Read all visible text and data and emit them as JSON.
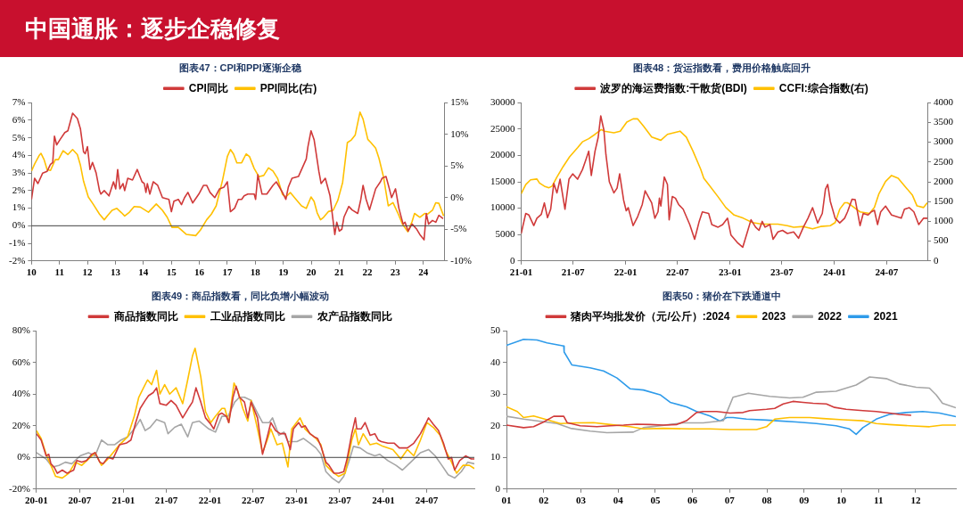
{
  "chart_data": [
    {
      "type": "other",
      "title": "中国通胀：逐步企稳修复"
    },
    {
      "type": "line",
      "title": "图表47：CPI和PPI逐渐企稳",
      "legend": "top",
      "xlim": [
        2010,
        2024.75
      ],
      "xticks": [
        {
          "value": 2010,
          "label": "10"
        },
        {
          "value": 2011,
          "label": "11"
        },
        {
          "value": 2012,
          "label": "12"
        },
        {
          "value": 2013,
          "label": "13"
        },
        {
          "value": 2014,
          "label": "14"
        },
        {
          "value": 2015,
          "label": "15"
        },
        {
          "value": 2016,
          "label": "16"
        },
        {
          "value": 2017,
          "label": "17"
        },
        {
          "value": 2018,
          "label": "18"
        },
        {
          "value": 2019,
          "label": "19"
        },
        {
          "value": 2020,
          "label": "20"
        },
        {
          "value": 2021,
          "label": "21"
        },
        {
          "value": 2022,
          "label": "22"
        },
        {
          "value": 2023,
          "label": "23"
        },
        {
          "value": 2024,
          "label": "24"
        }
      ],
      "ylim": [
        -2,
        7
      ],
      "yticks": [
        {
          "value": -2,
          "label": "-2%"
        },
        {
          "value": -1,
          "label": "-1%"
        },
        {
          "value": 0,
          "label": "0%"
        },
        {
          "value": 1,
          "label": "1%"
        },
        {
          "value": 2,
          "label": "2%"
        },
        {
          "value": 3,
          "label": "3%"
        },
        {
          "value": 4,
          "label": "4%"
        },
        {
          "value": 5,
          "label": "5%"
        },
        {
          "value": 6,
          "label": "6%"
        },
        {
          "value": 7,
          "label": "7%"
        }
      ],
      "y2lim": [
        -10,
        15
      ],
      "y2ticks": [
        {
          "value": -10,
          "label": "-10%"
        },
        {
          "value": -5,
          "label": "-5%"
        },
        {
          "value": 0,
          "label": "0%"
        },
        {
          "value": 5,
          "label": "5%"
        },
        {
          "value": 10,
          "label": "10%"
        },
        {
          "value": 15,
          "label": "15%"
        }
      ],
      "ref_lines": [
        {
          "axis": "y",
          "value": 0,
          "color": "#404040"
        }
      ],
      "series": [
        {
          "name": "CPI同比",
          "color": "#d03a3a",
          "x": [
            2010.0,
            2010.11,
            2010.23,
            2010.4,
            2010.56,
            2010.68,
            2010.76,
            2010.82,
            2010.9,
            2011.02,
            2011.19,
            2011.3,
            2011.47,
            2011.64,
            2011.75,
            2011.86,
            2011.92,
            2012.0,
            2012.09,
            2012.18,
            2012.31,
            2012.43,
            2012.48,
            2012.6,
            2012.77,
            2012.93,
            2013.01,
            2013.08,
            2013.16,
            2013.27,
            2013.33,
            2013.44,
            2013.61,
            2013.78,
            2013.95,
            2014.03,
            2014.09,
            2014.14,
            2014.23,
            2014.35,
            2014.51,
            2014.68,
            2014.91,
            2015.0,
            2015.09,
            2015.25,
            2015.36,
            2015.47,
            2015.59,
            2015.76,
            2015.98,
            2016.15,
            2016.26,
            2016.38,
            2016.55,
            2016.72,
            2016.88,
            2017.0,
            2017.11,
            2017.26,
            2017.39,
            2017.51,
            2017.6,
            2017.73,
            2017.96,
            2018.01,
            2018.09,
            2018.24,
            2018.41,
            2018.63,
            2018.75,
            2018.97,
            2019.09,
            2019.18,
            2019.31,
            2019.54,
            2019.82,
            2019.88,
            2019.99,
            2020.1,
            2020.27,
            2020.35,
            2020.5,
            2020.67,
            2020.84,
            2020.91,
            2021.0,
            2021.09,
            2021.17,
            2021.34,
            2021.46,
            2021.66,
            2021.77,
            2021.85,
            2021.96,
            2022.08,
            2022.3,
            2022.47,
            2022.53,
            2022.67,
            2022.79,
            2022.87,
            2023.01,
            2023.13,
            2023.28,
            2023.35,
            2023.46,
            2023.6,
            2023.77,
            2023.88,
            2024.03,
            2024.11,
            2024.19,
            2024.33,
            2024.45,
            2024.56,
            2024.71
          ],
          "values": [
            1.5,
            2.7,
            2.4,
            3.0,
            3.1,
            3.5,
            3.6,
            5.1,
            4.6,
            4.9,
            5.3,
            5.4,
            6.4,
            6.1,
            5.5,
            4.2,
            4.1,
            4.5,
            3.2,
            3.6,
            3.0,
            2.0,
            1.8,
            2.0,
            1.7,
            2.5,
            2.1,
            3.2,
            2.1,
            2.4,
            2.0,
            2.7,
            2.6,
            3.2,
            2.5,
            2.4,
            1.9,
            2.4,
            1.8,
            2.5,
            2.3,
            1.6,
            1.5,
            0.8,
            1.4,
            1.5,
            1.2,
            1.6,
            1.9,
            1.3,
            1.8,
            2.3,
            2.3,
            1.9,
            1.6,
            2.1,
            2.2,
            2.5,
            0.8,
            1.0,
            1.5,
            1.5,
            1.7,
            1.8,
            1.8,
            1.5,
            2.9,
            1.8,
            1.8,
            2.3,
            2.5,
            1.9,
            1.5,
            2.2,
            2.7,
            2.8,
            3.8,
            4.5,
            5.4,
            4.9,
            3.1,
            2.4,
            2.7,
            1.7,
            -0.5,
            0.2,
            -0.3,
            -0.2,
            0.5,
            1.1,
            0.9,
            0.7,
            1.5,
            2.3,
            1.5,
            0.9,
            2.1,
            2.5,
            2.7,
            2.8,
            2.1,
            1.6,
            2.1,
            1.0,
            0.1,
            0.2,
            -0.3,
            0.1,
            -0.2,
            -0.5,
            -0.8,
            0.7,
            0.1,
            0.3,
            0.2,
            0.6,
            0.4
          ]
        },
        {
          "name": "PPI同比(右)",
          "color": "#ffc000",
          "axis": "y2",
          "x": [
            2010.0,
            2010.11,
            2010.28,
            2010.34,
            2010.45,
            2010.56,
            2010.68,
            2010.85,
            2010.96,
            2011.13,
            2011.3,
            2011.47,
            2011.64,
            2011.75,
            2011.86,
            2012.03,
            2012.2,
            2012.43,
            2012.6,
            2012.71,
            2012.88,
            2013.05,
            2013.22,
            2013.33,
            2013.5,
            2013.67,
            2013.89,
            2014.18,
            2014.46,
            2014.68,
            2014.85,
            2015.02,
            2015.25,
            2015.53,
            2015.87,
            2016.04,
            2016.26,
            2016.43,
            2016.6,
            2016.83,
            2017.0,
            2017.11,
            2017.22,
            2017.34,
            2017.51,
            2017.67,
            2017.79,
            2017.96,
            2018.13,
            2018.3,
            2018.47,
            2018.63,
            2018.8,
            2018.97,
            2019.09,
            2019.25,
            2019.42,
            2019.65,
            2019.82,
            2019.99,
            2020.1,
            2020.21,
            2020.33,
            2020.44,
            2020.61,
            2020.78,
            2020.95,
            2021.12,
            2021.29,
            2021.43,
            2021.57,
            2021.74,
            2021.85,
            2022.02,
            2022.13,
            2022.3,
            2022.42,
            2022.58,
            2022.75,
            2022.92,
            2023.09,
            2023.26,
            2023.45,
            2023.6,
            2023.69,
            2023.88,
            2024.05,
            2024.16,
            2024.33,
            2024.45,
            2024.56,
            2024.73
          ],
          "values": [
            4.2,
            5.3,
            6.7,
            7.0,
            6.0,
            4.4,
            4.3,
            6.0,
            6.0,
            7.4,
            6.8,
            7.6,
            6.8,
            5.1,
            2.6,
            0.1,
            -1.0,
            -2.6,
            -3.5,
            -2.9,
            -2.0,
            -1.7,
            -2.4,
            -2.9,
            -2.3,
            -1.4,
            -1.5,
            -2.3,
            -1.0,
            -2.0,
            -3.1,
            -4.7,
            -4.7,
            -5.8,
            -6.0,
            -5.1,
            -3.5,
            -2.6,
            -1.3,
            2.8,
            6.5,
            7.6,
            6.9,
            5.5,
            5.5,
            6.9,
            6.5,
            4.6,
            3.3,
            3.5,
            4.7,
            4.2,
            3.0,
            0.5,
            0.1,
            0.8,
            -0.1,
            -1.3,
            -1.7,
            0.1,
            -0.6,
            -2.4,
            -3.5,
            -3.1,
            -2.2,
            -2.0,
            -0.4,
            2.4,
            8.7,
            9.1,
            9.9,
            13.5,
            12.4,
            9.2,
            8.7,
            7.8,
            6.2,
            3.3,
            -1.3,
            -0.8,
            -2.4,
            -4.2,
            -5.4,
            -3.8,
            -2.5,
            -3.1,
            -2.5,
            -2.6,
            -2.0,
            -0.8,
            -0.9,
            -2.9
          ]
        }
      ]
    },
    {
      "type": "line",
      "title": "图表48：货运指数看，费用价格触底回升",
      "legend": "top",
      "xlim": [
        "2021-01-01",
        "2024-11-20"
      ],
      "xticks": [
        {
          "value": "2021-01",
          "label": "21-01"
        },
        {
          "value": "2021-07",
          "label": "21-07"
        },
        {
          "value": "2022-01",
          "label": "22-01"
        },
        {
          "value": "2022-07",
          "label": "22-07"
        },
        {
          "value": "2023-01",
          "label": "23-01"
        },
        {
          "value": "2023-07",
          "label": "23-07"
        },
        {
          "value": "2024-01",
          "label": "24-01"
        },
        {
          "value": "2024-07",
          "label": "24-07"
        }
      ],
      "ylim": [
        0,
        30000
      ],
      "yticks": [
        0,
        5000,
        10000,
        15000,
        20000,
        25000,
        30000
      ],
      "y2lim": [
        0,
        4000
      ],
      "y2ticks": [
        0,
        500,
        1000,
        1500,
        2000,
        2500,
        3000,
        3500,
        4000
      ],
      "series": [
        {
          "name": "波罗的海运费指数:干散货(BDI)",
          "color": "#d03a3a",
          "x": [
            "2021-01-01",
            "2021-01-17",
            "2021-01-28",
            "2021-02-14",
            "2021-02-25",
            "2021-03-12",
            "2021-03-23",
            "2021-04-03",
            "2021-04-14",
            "2021-04-25",
            "2021-05-06",
            "2021-05-17",
            "2021-06-03",
            "2021-06-17",
            "2021-06-30",
            "2021-07-17",
            "2021-08-03",
            "2021-08-14",
            "2021-08-25",
            "2021-09-03",
            "2021-09-16",
            "2021-09-27",
            "2021-10-06",
            "2021-10-17",
            "2021-10-24",
            "2021-11-05",
            "2021-11-21",
            "2021-12-02",
            "2021-12-11",
            "2021-12-25",
            "2022-01-03",
            "2022-01-10",
            "2022-01-27",
            "2022-02-12",
            "2022-02-28",
            "2022-03-10",
            "2022-03-21",
            "2022-04-02",
            "2022-04-13",
            "2022-04-24",
            "2022-04-29",
            "2022-05-04",
            "2022-05-16",
            "2022-05-27",
            "2022-06-02",
            "2022-06-13",
            "2022-06-24",
            "2022-07-05",
            "2022-07-21",
            "2022-08-13",
            "2022-08-30",
            "2022-09-15",
            "2022-09-26",
            "2022-10-18",
            "2022-10-29",
            "2022-11-20",
            "2022-12-06",
            "2022-12-23",
            "2023-01-04",
            "2023-01-26",
            "2023-02-14",
            "2023-02-27",
            "2023-03-15",
            "2023-03-31",
            "2023-04-12",
            "2023-04-23",
            "2023-05-03",
            "2023-05-20",
            "2023-05-31",
            "2023-06-17",
            "2023-07-03",
            "2023-07-20",
            "2023-08-11",
            "2023-08-28",
            "2023-09-14",
            "2023-09-30",
            "2023-10-16",
            "2023-11-03",
            "2023-11-19",
            "2023-11-30",
            "2023-12-08",
            "2023-12-17",
            "2024-01-03",
            "2024-01-19",
            "2024-02-05",
            "2024-02-15",
            "2024-03-02",
            "2024-03-13",
            "2024-03-30",
            "2024-04-10",
            "2024-04-27",
            "2024-05-08",
            "2024-05-19",
            "2024-05-30",
            "2024-06-10",
            "2024-06-27",
            "2024-07-18",
            "2024-08-21",
            "2024-09-01",
            "2024-09-18",
            "2024-10-04",
            "2024-10-21",
            "2024-11-07",
            "2024-11-20"
          ],
          "values": [
            5200,
            9000,
            8700,
            6700,
            8100,
            8800,
            11000,
            8200,
            9800,
            14700,
            12900,
            15500,
            9800,
            15500,
            16500,
            15500,
            17300,
            19000,
            20800,
            16200,
            20800,
            23400,
            27500,
            24800,
            20200,
            15000,
            12900,
            13800,
            16500,
            11500,
            9500,
            10100,
            6700,
            8400,
            10700,
            13300,
            12200,
            11000,
            8100,
            9300,
            11900,
            10400,
            15900,
            14500,
            7800,
            12200,
            11900,
            10700,
            9800,
            6900,
            4100,
            7500,
            9300,
            9000,
            6900,
            6400,
            6900,
            8100,
            4900,
            3500,
            2600,
            4900,
            7800,
            6400,
            5800,
            7500,
            6400,
            6900,
            4100,
            5500,
            5800,
            5200,
            5500,
            4300,
            6400,
            8100,
            10100,
            7200,
            9000,
            13600,
            14500,
            11300,
            8100,
            7200,
            8100,
            9300,
            11700,
            11600,
            6700,
            9000,
            8700,
            9300,
            9600,
            6900,
            9300,
            10400,
            8700,
            8100,
            9800,
            10100,
            9300,
            6900,
            8100,
            8100
          ]
        },
        {
          "name": "CCFI:综合指数(右)",
          "color": "#ffc000",
          "axis": "y2",
          "x": [
            "2021-01-01",
            "2021-01-17",
            "2021-02-03",
            "2021-02-25",
            "2021-03-06",
            "2021-03-23",
            "2021-04-08",
            "2021-04-19",
            "2021-05-06",
            "2021-05-28",
            "2021-06-19",
            "2021-07-17",
            "2021-08-03",
            "2021-08-25",
            "2021-09-16",
            "2021-10-08",
            "2021-10-19",
            "2021-11-21",
            "2021-12-13",
            "2022-01-05",
            "2022-01-27",
            "2022-02-12",
            "2022-03-05",
            "2022-04-02",
            "2022-05-04",
            "2022-05-27",
            "2022-06-18",
            "2022-07-10",
            "2022-08-01",
            "2022-08-24",
            "2022-09-20",
            "2022-10-01",
            "2022-10-18",
            "2022-11-20",
            "2022-12-17",
            "2023-01-15",
            "2023-02-16",
            "2023-03-20",
            "2023-04-23",
            "2023-06-17",
            "2023-07-20",
            "2023-08-11",
            "2023-09-14",
            "2023-10-16",
            "2023-11-13",
            "2023-12-17",
            "2024-01-03",
            "2024-01-19",
            "2024-02-05",
            "2024-02-15",
            "2024-03-02",
            "2024-03-30",
            "2024-05-02",
            "2024-05-19",
            "2024-06-04",
            "2024-06-27",
            "2024-07-18",
            "2024-08-10",
            "2024-09-07",
            "2024-09-29",
            "2024-10-15",
            "2024-11-07",
            "2024-11-20"
          ],
          "values": [
            1700,
            1930,
            2050,
            2070,
            1970,
            1890,
            1850,
            1890,
            2120,
            2390,
            2630,
            2860,
            3010,
            3090,
            3200,
            3320,
            3280,
            3240,
            3280,
            3510,
            3590,
            3590,
            3400,
            3130,
            3050,
            3200,
            3240,
            3280,
            3130,
            2780,
            2320,
            2090,
            1930,
            1620,
            1350,
            1160,
            1080,
            970,
            930,
            930,
            890,
            850,
            870,
            810,
            870,
            890,
            970,
            1310,
            1470,
            1470,
            1390,
            1240,
            1200,
            1350,
            1700,
            2010,
            2160,
            2090,
            1850,
            1660,
            1390,
            1350,
            1470
          ]
        }
      ]
    },
    {
      "type": "line",
      "title": "图表49：商品指数看，同比负增小幅波动",
      "legend": "top",
      "xlim": [
        "2020-01-01",
        "2025-01-18"
      ],
      "xticks": [
        {
          "value": "2020-01",
          "label": "20-01"
        },
        {
          "value": "2020-07",
          "label": "20-07"
        },
        {
          "value": "2021-01",
          "label": "21-01"
        },
        {
          "value": "2021-07",
          "label": "21-07"
        },
        {
          "value": "2022-01",
          "label": "22-01"
        },
        {
          "value": "2022-07",
          "label": "22-07"
        },
        {
          "value": "2023-01",
          "label": "23-01"
        },
        {
          "value": "2023-07",
          "label": "23-07"
        },
        {
          "value": "2024-01",
          "label": "24-01"
        },
        {
          "value": "2024-07",
          "label": "24-07"
        }
      ],
      "ylim": [
        -20,
        80
      ],
      "yticks": [
        {
          "value": -20,
          "label": "-20%"
        },
        {
          "value": 0,
          "label": "0%"
        },
        {
          "value": 20,
          "label": "20%"
        },
        {
          "value": 40,
          "label": "40%"
        },
        {
          "value": 60,
          "label": "60%"
        },
        {
          "value": 80,
          "label": "80%"
        }
      ],
      "ref_lines": [
        {
          "axis": "y",
          "value": 0,
          "color": "#404040"
        }
      ],
      "series": [
        {
          "name": "商品指数同比",
          "color": "#d03a3a",
          "x": [
            "2020-01-01",
            "2020-01-21",
            "2020-02-11",
            "2020-02-22",
            "2020-03-02",
            "2020-03-15",
            "2020-03-29",
            "2020-04-19",
            "2020-05-09",
            "2020-06-06",
            "2020-06-19",
            "2020-07-10",
            "2020-07-30",
            "2020-08-21",
            "2020-09-04",
            "2020-09-24",
            "2020-10-08",
            "2020-10-28",
            "2020-11-18",
            "2020-12-16",
            "2021-01-13",
            "2021-02-02",
            "2021-02-22",
            "2021-03-13",
            "2021-04-03",
            "2021-04-17",
            "2021-05-07",
            "2021-05-21",
            "2021-06-04",
            "2021-07-01",
            "2021-07-21",
            "2021-08-11",
            "2021-09-08",
            "2021-10-06",
            "2021-10-19",
            "2021-11-03",
            "2021-11-23",
            "2021-12-13",
            "2022-01-04",
            "2022-01-17",
            "2022-02-07",
            "2022-02-20",
            "2022-03-11",
            "2022-03-21",
            "2022-04-08",
            "2022-04-21",
            "2022-05-05",
            "2022-05-26",
            "2022-06-09",
            "2022-06-23",
            "2022-07-20",
            "2022-08-10",
            "2022-08-30",
            "2022-09-14",
            "2022-10-04",
            "2022-10-24",
            "2022-11-14",
            "2022-12-05",
            "2022-12-18",
            "2023-01-09",
            "2023-01-22",
            "2023-02-05",
            "2023-02-26",
            "2023-03-16",
            "2023-03-30",
            "2023-04-13",
            "2023-05-04",
            "2023-05-17",
            "2023-06-07",
            "2023-06-27",
            "2023-07-18",
            "2023-08-01",
            "2023-08-21",
            "2023-09-05",
            "2023-09-11",
            "2023-09-29",
            "2023-10-16",
            "2023-11-06",
            "2023-11-26",
            "2023-12-10",
            "2023-12-23",
            "2024-01-20",
            "2024-02-16",
            "2024-03-08",
            "2024-04-11",
            "2024-05-08",
            "2024-06-05",
            "2024-06-26",
            "2024-07-09",
            "2024-07-29",
            "2024-08-20",
            "2024-09-10",
            "2024-09-30",
            "2024-10-14",
            "2024-10-27",
            "2024-11-17",
            "2024-12-12",
            "2025-01-05",
            "2025-01-18"
          ],
          "values": [
            15,
            11,
            1,
            2,
            -4,
            -6,
            -10,
            -8,
            -10,
            -8,
            -2,
            -3,
            -2,
            2,
            3,
            -3,
            -4,
            0,
            -1,
            8,
            9,
            11,
            22,
            31,
            36,
            39,
            41,
            44,
            34,
            33,
            36,
            33,
            25,
            32,
            35,
            44,
            35,
            25,
            21,
            18,
            27,
            28,
            26,
            22,
            38,
            45,
            38,
            35,
            25,
            35,
            25,
            2,
            13,
            22,
            17,
            15,
            15,
            5,
            18,
            22,
            19,
            20,
            15,
            13,
            12,
            7,
            -3,
            -5,
            -10,
            -10,
            -9,
            -1,
            15,
            25,
            18,
            18,
            22,
            14,
            15,
            11,
            10,
            9,
            9,
            6,
            6,
            9,
            15,
            21,
            25,
            21,
            17,
            9,
            -1,
            0,
            -8,
            -2,
            1,
            -1,
            -1
          ]
        },
        {
          "name": "工业品指数同比",
          "color": "#ffc000",
          "x": [
            "2020-01-01",
            "2020-01-21",
            "2020-02-11",
            "2020-03-02",
            "2020-03-22",
            "2020-04-19",
            "2020-05-16",
            "2020-06-13",
            "2020-07-10",
            "2020-08-07",
            "2020-09-04",
            "2020-10-01",
            "2020-10-28",
            "2020-12-16",
            "2021-01-19",
            "2021-02-16",
            "2021-03-07",
            "2021-03-27",
            "2021-04-13",
            "2021-04-30",
            "2021-05-21",
            "2021-06-04",
            "2021-06-24",
            "2021-07-15",
            "2021-08-11",
            "2021-09-08",
            "2021-09-29",
            "2021-10-19",
            "2021-10-30",
            "2021-11-23",
            "2021-12-13",
            "2022-01-04",
            "2022-01-24",
            "2022-02-20",
            "2022-03-04",
            "2022-03-21",
            "2022-04-12",
            "2022-04-28",
            "2022-05-19",
            "2022-06-09",
            "2022-06-23",
            "2022-07-20",
            "2022-08-10",
            "2022-08-30",
            "2022-09-14",
            "2022-10-10",
            "2022-11-01",
            "2022-11-25",
            "2022-12-11",
            "2023-01-15",
            "2023-02-05",
            "2023-02-26",
            "2023-03-23",
            "2023-04-13",
            "2023-05-04",
            "2023-05-30",
            "2023-06-27",
            "2023-07-24",
            "2023-08-21",
            "2023-09-05",
            "2023-09-18",
            "2023-10-08",
            "2023-11-06",
            "2023-12-03",
            "2023-12-30",
            "2024-02-10",
            "2024-03-14",
            "2024-04-11",
            "2024-05-08",
            "2024-06-05",
            "2024-07-02",
            "2024-07-29",
            "2024-08-27",
            "2024-09-17",
            "2024-10-14",
            "2024-11-04",
            "2024-12-01",
            "2024-12-28",
            "2025-01-18"
          ],
          "values": [
            17,
            12,
            2,
            -5,
            -12,
            -13,
            -10,
            -3,
            -5,
            -1,
            3,
            -5,
            -1,
            8,
            13,
            26,
            38,
            44,
            49,
            46,
            55,
            40,
            46,
            40,
            44,
            34,
            49,
            64,
            69,
            51,
            29,
            22,
            26,
            31,
            31,
            22,
            47,
            42,
            31,
            23,
            36,
            18,
            3,
            11,
            18,
            8,
            9,
            -6,
            18,
            25,
            18,
            15,
            12,
            8,
            -5,
            -9,
            -12,
            -10,
            11,
            18,
            8,
            15,
            8,
            9,
            7,
            5,
            -1,
            5,
            1,
            11,
            22,
            19,
            14,
            5,
            -3,
            -10,
            -5,
            -5,
            -7
          ]
        },
        {
          "name": "农产品指数同比",
          "color": "#a6a6a6",
          "x": [
            "2020-01-01",
            "2020-02-11",
            "2020-03-08",
            "2020-04-05",
            "2020-05-02",
            "2020-05-29",
            "2020-07-03",
            "2020-08-07",
            "2020-09-04",
            "2020-10-01",
            "2020-10-28",
            "2020-11-25",
            "2020-12-22",
            "2021-01-19",
            "2021-02-16",
            "2021-03-13",
            "2021-04-03",
            "2021-04-24",
            "2021-05-21",
            "2021-06-24",
            "2021-07-08",
            "2021-08-05",
            "2021-09-02",
            "2021-09-29",
            "2021-10-19",
            "2021-11-16",
            "2021-12-27",
            "2022-01-24",
            "2022-02-20",
            "2022-03-18",
            "2022-04-15",
            "2022-05-05",
            "2022-05-26",
            "2022-06-23",
            "2022-07-20",
            "2022-08-10",
            "2022-09-07",
            "2022-09-21",
            "2022-10-18",
            "2022-11-08",
            "2022-11-25",
            "2023-01-02",
            "2023-01-29",
            "2023-02-26",
            "2023-03-23",
            "2023-04-13",
            "2023-05-04",
            "2023-05-30",
            "2023-06-27",
            "2023-07-18",
            "2023-08-08",
            "2023-08-28",
            "2023-09-25",
            "2023-10-23",
            "2023-11-26",
            "2023-12-16",
            "2024-01-20",
            "2024-02-23",
            "2024-03-21",
            "2024-04-25",
            "2024-06-05",
            "2024-07-09",
            "2024-08-06",
            "2024-09-03",
            "2024-09-30",
            "2024-10-27",
            "2024-11-24",
            "2024-12-21",
            "2025-01-18"
          ],
          "values": [
            3,
            -1,
            -6,
            -5,
            -3,
            -4,
            1,
            3,
            1,
            11,
            8,
            8,
            11,
            13,
            18,
            24,
            17,
            19,
            24,
            22,
            15,
            19,
            21,
            13,
            22,
            23,
            18,
            16,
            26,
            26,
            35,
            38,
            38,
            36,
            28,
            22,
            22,
            25,
            14,
            16,
            10,
            10,
            12,
            9,
            6,
            2,
            -9,
            -13,
            -16,
            -12,
            -3,
            7,
            6,
            3,
            1,
            2,
            -2,
            -5,
            -8,
            -3,
            3,
            5,
            1,
            -5,
            -11,
            -13,
            -9,
            -3,
            -4
          ]
        }
      ]
    },
    {
      "type": "line",
      "title": "图表50：猪价在下跌通道中",
      "legend": "top",
      "xlim": [
        1,
        13.08
      ],
      "xticks": [
        {
          "value": 1,
          "label": "01"
        },
        {
          "value": 2,
          "label": "02"
        },
        {
          "value": 3,
          "label": "03"
        },
        {
          "value": 4,
          "label": "04"
        },
        {
          "value": 5,
          "label": "05"
        },
        {
          "value": 6,
          "label": "06"
        },
        {
          "value": 7,
          "label": "07"
        },
        {
          "value": 8,
          "label": "08"
        },
        {
          "value": 9,
          "label": "09"
        },
        {
          "value": 10,
          "label": "10"
        },
        {
          "value": 11,
          "label": "11"
        },
        {
          "value": 12,
          "label": "12"
        }
      ],
      "ylim": [
        0,
        50
      ],
      "yticks": [
        0,
        10,
        20,
        30,
        40,
        50
      ],
      "series": [
        {
          "name": "猪肉平均批发价（元/公斤）:2024",
          "color": "#d03a3a",
          "x": [
            1.0,
            1.46,
            1.73,
            2.0,
            2.27,
            2.54,
            2.63,
            2.98,
            3.43,
            3.79,
            4.15,
            4.5,
            4.86,
            5.22,
            5.58,
            5.84,
            6.11,
            6.29,
            6.65,
            7.01,
            7.36,
            7.54,
            7.99,
            8.21,
            8.44,
            8.7,
            8.97,
            9.24,
            9.6,
            9.82,
            10.13,
            10.58,
            10.94,
            11.29,
            11.56,
            11.88
          ],
          "values": [
            20.2,
            19.4,
            19.7,
            21.2,
            23.0,
            23.0,
            21.0,
            20.0,
            19.7,
            20.0,
            20.2,
            20.5,
            20.4,
            20.2,
            20.4,
            21.6,
            24.2,
            24.5,
            24.5,
            24.0,
            24.2,
            24.8,
            25.2,
            25.5,
            26.9,
            27.7,
            27.4,
            27.1,
            26.9,
            25.8,
            25.2,
            24.8,
            24.5,
            24.0,
            23.6,
            23.3
          ]
        },
        {
          "name": "2023",
          "color": "#ffc000",
          "x": [
            1.0,
            1.29,
            1.46,
            1.73,
            2.09,
            2.45,
            2.89,
            3.34,
            3.79,
            4.32,
            4.68,
            5.22,
            5.93,
            6.47,
            7.01,
            7.72,
            7.99,
            8.21,
            8.61,
            9.15,
            9.51,
            10.04,
            10.58,
            10.94,
            11.29,
            11.83,
            12.37,
            12.72,
            13.08
          ],
          "values": [
            26.0,
            24.5,
            22.6,
            23.1,
            21.9,
            20.7,
            20.9,
            21.0,
            20.4,
            19.7,
            19.0,
            19.2,
            19.0,
            19.0,
            18.8,
            18.8,
            19.7,
            22.1,
            22.6,
            22.6,
            22.3,
            21.9,
            21.6,
            20.7,
            20.4,
            20.0,
            19.7,
            20.2,
            20.2
          ]
        },
        {
          "name": "2022",
          "color": "#a6a6a6",
          "x": [
            1.0,
            1.46,
            1.91,
            2.36,
            2.72,
            3.25,
            3.7,
            4.41,
            4.68,
            5.75,
            6.29,
            6.83,
            7.09,
            7.5,
            8.08,
            8.61,
            8.97,
            9.33,
            9.86,
            10.4,
            10.76,
            11.21,
            11.56,
            12.01,
            12.37,
            12.55,
            12.72,
            13.08
          ],
          "values": [
            23.0,
            22.1,
            21.4,
            20.7,
            19.2,
            18.3,
            17.8,
            18.0,
            19.4,
            20.9,
            20.9,
            21.6,
            29.0,
            30.3,
            29.3,
            28.8,
            29.0,
            30.6,
            30.9,
            32.9,
            35.4,
            34.9,
            33.2,
            32.2,
            31.9,
            29.8,
            27.1,
            25.7
          ]
        },
        {
          "name": "2021",
          "color": "#2e9bea",
          "x": [
            1.0,
            1.46,
            1.82,
            2.09,
            2.54,
            2.55,
            2.76,
            3.25,
            3.61,
            3.97,
            4.32,
            4.68,
            5.13,
            5.4,
            5.84,
            6.11,
            6.47,
            6.74,
            6.92,
            7.09,
            7.45,
            7.99,
            8.26,
            8.79,
            9.33,
            9.86,
            10.22,
            10.4,
            10.58,
            10.94,
            11.29,
            11.74,
            12.19,
            12.64,
            13.08
          ],
          "values": [
            45.4,
            47.3,
            47.1,
            46.2,
            45.2,
            43.3,
            39.2,
            38.3,
            37.3,
            35.1,
            31.7,
            31.3,
            29.8,
            27.4,
            26.0,
            24.5,
            23.1,
            21.5,
            22.6,
            22.6,
            22.1,
            21.8,
            21.6,
            21.2,
            20.7,
            20.0,
            19.0,
            17.3,
            19.4,
            22.1,
            23.6,
            24.2,
            24.5,
            24.0,
            22.9
          ]
        }
      ]
    }
  ]
}
